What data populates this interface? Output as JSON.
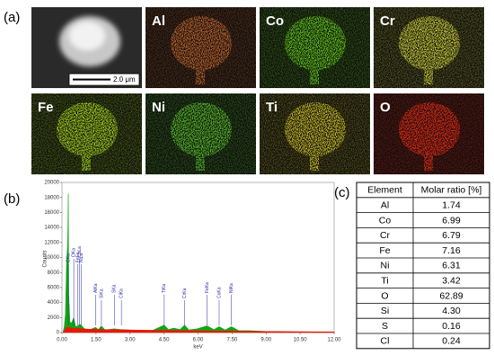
{
  "panels": {
    "a": "(a)",
    "b": "(b)",
    "c": "(c)"
  },
  "sem": {
    "scale_bar": "2.0 μm"
  },
  "maps": [
    {
      "label": "Al",
      "color": "#c0642c"
    },
    {
      "label": "Co",
      "color": "#62c81a"
    },
    {
      "label": "Cr",
      "color": "#cfd23a"
    },
    {
      "label": "Fe",
      "color": "#a6d81e"
    },
    {
      "label": "Ni",
      "color": "#58bc2a"
    },
    {
      "label": "Ti",
      "color": "#c9bd28"
    },
    {
      "label": "O",
      "color": "#ec2a14"
    }
  ],
  "chart_data": {
    "type": "area",
    "x": [
      0.05,
      0.1,
      0.15,
      0.2,
      0.25,
      0.28,
      0.3,
      0.35,
      0.4,
      0.45,
      0.52,
      0.6,
      0.7,
      0.78,
      0.85,
      0.93,
      1.0,
      1.2,
      1.49,
      1.6,
      1.74,
      1.9,
      2.3,
      2.6,
      3.0,
      3.5,
      4.0,
      4.51,
      4.7,
      4.93,
      5.2,
      5.41,
      5.6,
      5.95,
      6.4,
      6.7,
      6.93,
      7.2,
      7.47,
      7.8,
      8.3,
      9.0,
      10.0,
      11.0,
      12.0
    ],
    "series": [
      {
        "color": "#13a513",
        "values": [
          100,
          800,
          2500,
          9000,
          12000,
          18500,
          5000,
          1500,
          1200,
          1500,
          2000,
          800,
          900,
          1100,
          1000,
          700,
          500,
          350,
          700,
          400,
          900,
          350,
          500,
          400,
          350,
          300,
          300,
          1000,
          400,
          600,
          400,
          1000,
          350,
          500,
          900,
          400,
          800,
          350,
          800,
          250,
          250,
          150,
          100,
          80,
          60
        ]
      },
      {
        "color": "#e8180c",
        "values": [
          50,
          200,
          500,
          700,
          700,
          700,
          700,
          650,
          600,
          600,
          600,
          550,
          550,
          550,
          520,
          500,
          480,
          450,
          450,
          420,
          420,
          400,
          380,
          360,
          340,
          320,
          300,
          300,
          290,
          280,
          270,
          260,
          250,
          240,
          230,
          220,
          210,
          200,
          190,
          180,
          170,
          150,
          130,
          110,
          100
        ]
      }
    ],
    "xlabel": "keV",
    "ylabel": "Counts",
    "xlim": [
      0,
      12
    ],
    "ylim": [
      0,
      20000
    ],
    "xticks": [
      {
        "value": 0,
        "label": "0.00"
      },
      {
        "value": 1.5,
        "label": "1.50"
      },
      {
        "value": 3,
        "label": "3.00"
      },
      {
        "value": 4.5,
        "label": "4.50"
      },
      {
        "value": 6,
        "label": "6.00"
      },
      {
        "value": 7.5,
        "label": "7.50"
      },
      {
        "value": 9,
        "label": "9.00"
      },
      {
        "value": 10.5,
        "label": "10.50"
      },
      {
        "value": 12,
        "label": "12.00"
      }
    ],
    "yticks": [
      0,
      2000,
      4000,
      6000,
      8000,
      10000,
      12000,
      14000,
      16000,
      18000,
      20000
    ],
    "annotations": [
      {
        "text": "CKa",
        "x": 0.28
      },
      {
        "text": "OKa",
        "x": 0.52
      },
      {
        "text": "FeLa",
        "x": 0.7
      },
      {
        "text": "CoLa",
        "x": 0.78
      },
      {
        "text": "NiLa",
        "x": 0.85
      },
      {
        "text": "AlKa",
        "x": 1.49
      },
      {
        "text": "SiKa",
        "x": 1.74
      },
      {
        "text": "SKa",
        "x": 2.31
      },
      {
        "text": "ClKa",
        "x": 2.62
      },
      {
        "text": "TiKa",
        "x": 4.51
      },
      {
        "text": "CrKa",
        "x": 5.41
      },
      {
        "text": "FeKa",
        "x": 6.4
      },
      {
        "text": "CoKa",
        "x": 6.93
      },
      {
        "text": "NiKa",
        "x": 7.47
      }
    ]
  },
  "table": {
    "header": [
      "Element",
      "Molar ratio [%]"
    ],
    "rows": [
      [
        "Al",
        "1.74"
      ],
      [
        "Co",
        "6.99"
      ],
      [
        "Cr",
        "6.79"
      ],
      [
        "Fe",
        "7.16"
      ],
      [
        "Ni",
        "6.31"
      ],
      [
        "Ti",
        "3.42"
      ],
      [
        "O",
        "62.89"
      ],
      [
        "Si",
        "4.30"
      ],
      [
        "S",
        "0.16"
      ],
      [
        "Cl",
        "0.24"
      ]
    ]
  }
}
